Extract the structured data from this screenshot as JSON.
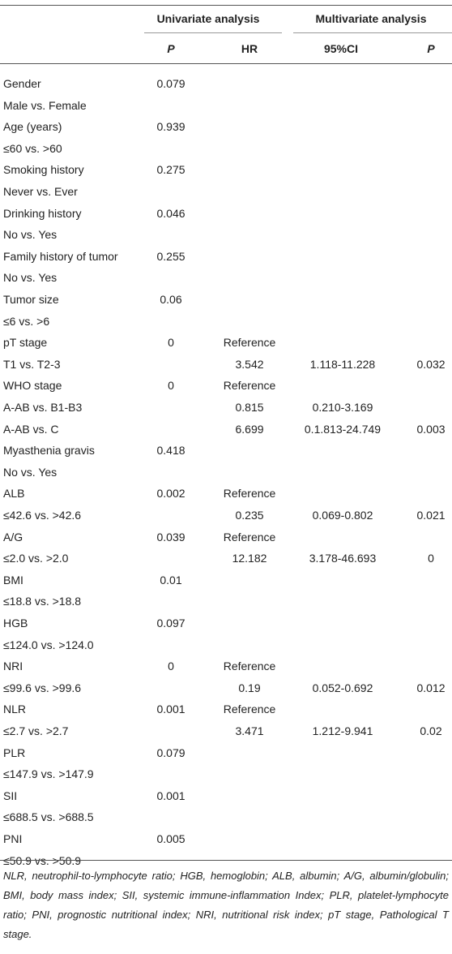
{
  "header": {
    "univariate": "Univariate analysis",
    "multivariate": "Multivariate analysis",
    "columns": [
      "P",
      "HR",
      "95%CI",
      "P"
    ]
  },
  "table": {
    "rows": [
      [
        "Gender",
        "0.079",
        null,
        null,
        null
      ],
      [
        "Male vs. Female",
        null,
        null,
        null,
        null
      ],
      [
        "Age (years)",
        "0.939",
        null,
        null,
        null
      ],
      [
        "≤60 vs. >60",
        null,
        null,
        null,
        null
      ],
      [
        "Smoking history",
        "0.275",
        null,
        null,
        null
      ],
      [
        "Never vs. Ever",
        null,
        null,
        null,
        null
      ],
      [
        "Drinking history",
        "0.046",
        null,
        null,
        null
      ],
      [
        "No vs. Yes",
        null,
        null,
        null,
        null
      ],
      [
        "Family history of tumor",
        "0.255",
        null,
        null,
        null
      ],
      [
        "No vs. Yes",
        null,
        null,
        null,
        null
      ],
      [
        "Tumor size",
        "0.06",
        null,
        null,
        null
      ],
      [
        "≤6 vs. >6",
        null,
        null,
        null,
        null
      ],
      [
        "pT stage",
        "0",
        "Reference",
        null,
        null
      ],
      [
        "T1 vs. T2-3",
        null,
        "3.542",
        "1.118-11.228",
        "0.032"
      ],
      [
        "WHO stage",
        "0",
        "Reference",
        null,
        null
      ],
      [
        "A-AB vs. B1-B3",
        null,
        "0.815",
        "0.210-3.169",
        null
      ],
      [
        "A-AB vs. C",
        null,
        "6.699",
        "0.1.813-24.749",
        "0.003"
      ],
      [
        "Myasthenia gravis",
        "0.418",
        null,
        null,
        null
      ],
      [
        "No vs. Yes",
        null,
        null,
        null,
        null
      ],
      [
        "ALB",
        "0.002",
        "Reference",
        null,
        null
      ],
      [
        "≤42.6 vs. >42.6",
        null,
        "0.235",
        "0.069-0.802",
        "0.021"
      ],
      [
        "A/G",
        "0.039",
        "Reference",
        null,
        null
      ],
      [
        "≤2.0 vs. >2.0",
        null,
        "12.182",
        "3.178-46.693",
        "0"
      ],
      [
        "BMI",
        "0.01",
        null,
        null,
        null
      ],
      [
        "≤18.8 vs. >18.8",
        null,
        null,
        null,
        null
      ],
      [
        "HGB",
        "0.097",
        null,
        null,
        null
      ],
      [
        "≤124.0 vs. >124.0",
        null,
        null,
        null,
        null
      ],
      [
        "NRI",
        "0",
        "Reference",
        null,
        null
      ],
      [
        "≤99.6 vs. >99.6",
        null,
        "0.19",
        "0.052-0.692",
        "0.012"
      ],
      [
        "NLR",
        "0.001",
        "Reference",
        null,
        null
      ],
      [
        "≤2.7 vs. >2.7",
        null,
        "3.471",
        "1.212-9.941",
        "0.02"
      ],
      [
        "PLR",
        "0.079",
        null,
        null,
        null
      ],
      [
        "≤147.9 vs. >147.9",
        null,
        null,
        null,
        null
      ],
      [
        "SII",
        "0.001",
        null,
        null,
        null
      ],
      [
        "≤688.5 vs. >688.5",
        null,
        null,
        null,
        null
      ],
      [
        "PNI",
        "0.005",
        null,
        null,
        null
      ],
      [
        "≤50.9 vs. >50.9",
        null,
        null,
        null,
        null
      ]
    ]
  },
  "footnote": "NLR, neutrophil-to-lymphocyte ratio; HGB, hemoglobin; ALB, albumin; A/G, albumin/globulin; BMI, body mass index; SII, systemic immune-inflammation Index; PLR, platelet-lymphocyte ratio; PNI, prognostic nutritional index; NRI, nutritional risk index; pT stage, Pathological T stage."
}
